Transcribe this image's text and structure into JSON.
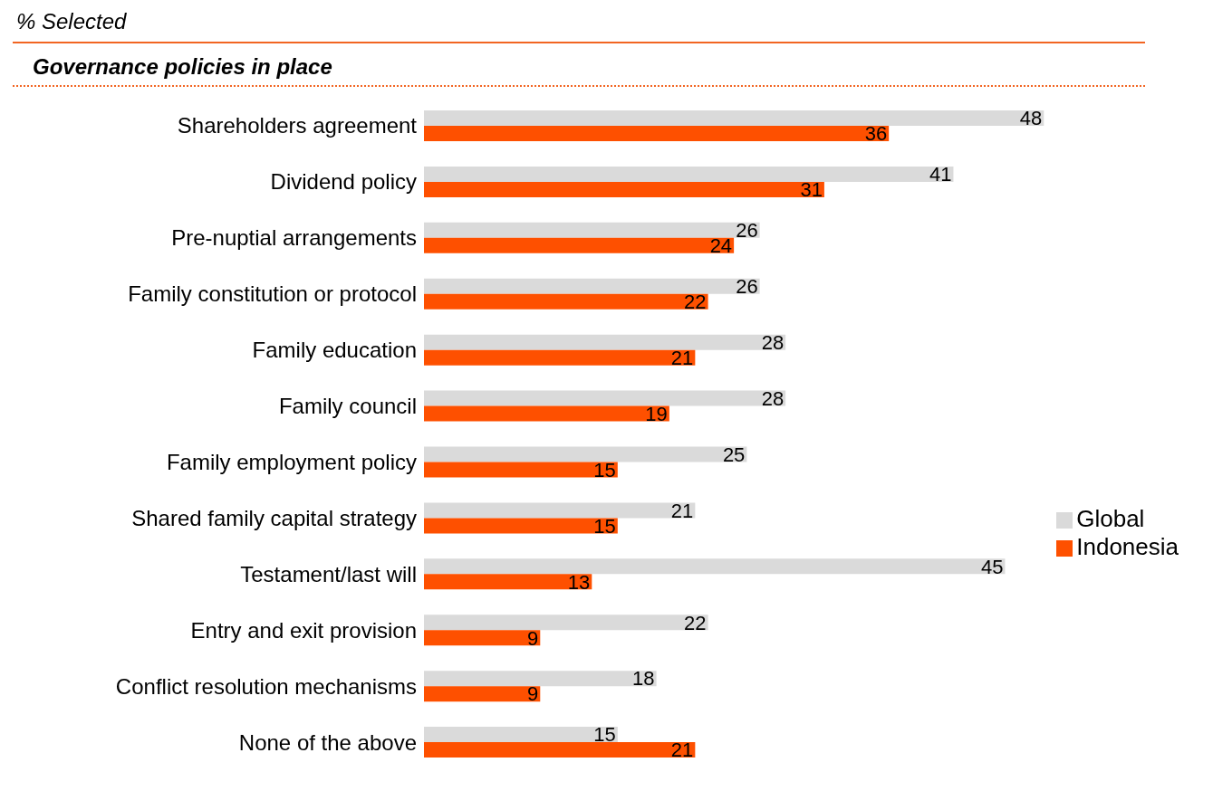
{
  "chart_data": {
    "type": "bar",
    "orientation": "horizontal",
    "annotations": [
      "% Selected"
    ],
    "title": "Governance policies in place",
    "categories": [
      "Shareholders agreement",
      "Dividend policy",
      "Pre-nuptial arrangements",
      "Family constitution or protocol",
      "Family education",
      "Family council",
      "Family employment policy",
      "Shared family capital strategy",
      "Testament/last will",
      "Entry and exit provision",
      "Conflict resolution mechanisms",
      "None of the above"
    ],
    "series": [
      {
        "name": "Global",
        "color": "#dadada",
        "values": [
          48,
          41,
          26,
          26,
          28,
          28,
          25,
          21,
          45,
          22,
          18,
          15
        ]
      },
      {
        "name": "Indonesia",
        "color": "#fe5000",
        "values": [
          36,
          31,
          24,
          22,
          21,
          19,
          15,
          15,
          13,
          9,
          9,
          21
        ]
      }
    ],
    "data_labels": true,
    "legend": "right",
    "grid": false
  }
}
